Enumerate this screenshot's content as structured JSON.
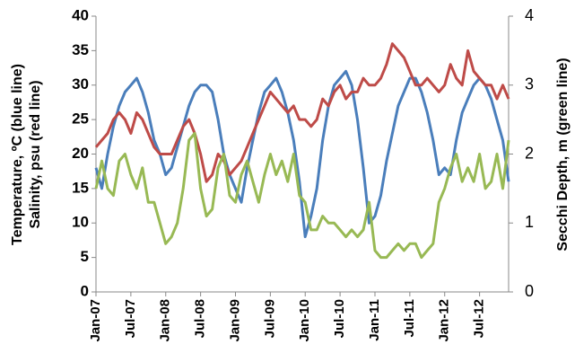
{
  "chart_data": {
    "type": "line",
    "y_label": [
      "Temperature, ºC (blue line)",
      "Salinity, psu (red line)"
    ],
    "y2_label": "Secchi Depth, m (green line)",
    "categories": [
      "Jan-07",
      null,
      null,
      null,
      null,
      null,
      "Jul-07",
      null,
      null,
      null,
      null,
      null,
      "Jan-08",
      null,
      null,
      null,
      null,
      null,
      "Jul-08",
      null,
      null,
      null,
      null,
      null,
      "Jan-09",
      null,
      null,
      null,
      null,
      null,
      "Jul-09",
      null,
      null,
      null,
      null,
      null,
      "Jan-10",
      null,
      null,
      null,
      null,
      null,
      "Jul-10",
      null,
      null,
      null,
      null,
      null,
      "Jan-11",
      null,
      null,
      null,
      null,
      null,
      "Jul-11",
      null,
      null,
      null,
      null,
      null,
      "Jan-12",
      null,
      null,
      null,
      null,
      null,
      "Jul-12",
      null,
      null,
      null,
      null,
      null
    ],
    "ylim": [
      0,
      40
    ],
    "yticks": [
      0,
      5,
      10,
      15,
      20,
      25,
      30,
      35,
      40
    ],
    "y2lim": [
      0,
      4
    ],
    "y2ticks": [
      0,
      1,
      2,
      3,
      4
    ],
    "series": [
      {
        "name": "Temperature",
        "color": "#4a7ebb",
        "values": [
          18,
          15,
          20,
          24,
          27,
          29,
          30,
          31,
          29,
          26,
          22,
          20,
          17,
          18,
          21,
          24,
          27,
          29,
          30,
          30,
          29,
          25,
          20,
          17,
          15,
          13,
          18,
          22,
          26,
          29,
          30,
          31,
          29,
          26,
          22,
          16,
          8,
          11,
          15,
          22,
          27,
          30,
          31,
          32,
          30,
          25,
          18,
          10,
          11,
          14,
          19,
          23,
          27,
          29,
          31,
          31,
          29,
          26,
          22,
          17,
          18,
          17,
          22,
          26,
          28,
          30,
          31,
          30,
          28,
          25,
          22,
          16
        ]
      },
      {
        "name": "Salinity",
        "color": "#be4b48",
        "values": [
          21,
          22,
          23,
          25,
          26,
          25,
          23,
          26,
          25,
          23,
          21,
          20,
          20,
          20,
          22,
          24,
          25,
          23,
          20,
          16,
          17,
          20,
          19,
          17,
          18,
          19,
          21,
          23,
          25,
          27,
          29,
          28,
          27,
          26,
          27,
          25,
          25,
          24,
          25,
          28,
          27,
          29,
          30,
          28,
          29,
          29,
          31,
          30,
          30,
          31,
          33,
          36,
          35,
          34,
          32,
          30,
          30,
          31,
          30,
          29,
          30,
          33,
          31,
          30,
          35,
          32,
          31,
          30,
          30,
          28,
          30,
          28
        ]
      },
      {
        "name": "Secchi Depth",
        "color": "#98b954",
        "axis": "y2",
        "values": [
          1.5,
          1.9,
          1.5,
          1.4,
          1.9,
          2.0,
          1.7,
          1.5,
          1.8,
          1.3,
          1.3,
          1.0,
          0.7,
          0.8,
          1.0,
          1.5,
          2.2,
          2.3,
          1.5,
          1.1,
          1.2,
          1.8,
          2.0,
          1.4,
          1.3,
          1.7,
          1.9,
          1.6,
          1.3,
          1.7,
          2.0,
          1.7,
          1.9,
          1.6,
          2.0,
          1.4,
          1.3,
          0.9,
          0.9,
          1.1,
          1.0,
          1.0,
          0.9,
          0.8,
          0.9,
          0.8,
          0.9,
          1.3,
          0.6,
          0.5,
          0.5,
          0.6,
          0.7,
          0.6,
          0.7,
          0.7,
          0.5,
          0.6,
          0.7,
          1.3,
          1.5,
          1.8,
          2.0,
          1.6,
          1.8,
          1.6,
          2.0,
          1.5,
          1.6,
          2.0,
          1.5,
          2.2
        ]
      }
    ]
  }
}
